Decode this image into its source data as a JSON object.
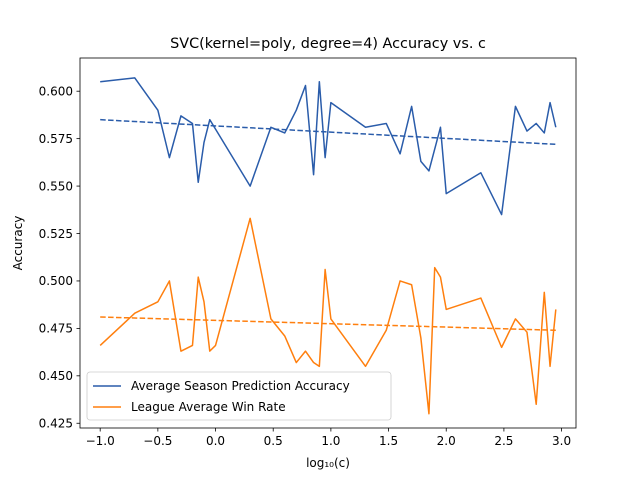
{
  "chart_data": {
    "type": "line",
    "title": "SVC(kernel=poly, degree=4) Accuracy vs. c",
    "xlabel": "log₁₀(c)",
    "ylabel": "Accuracy",
    "xlim": [
      -1.175,
      3.125
    ],
    "ylim": [
      0.4225,
      0.6175
    ],
    "xticks": [
      -1.0,
      -0.5,
      0.0,
      0.5,
      1.0,
      1.5,
      2.0,
      2.5,
      3.0
    ],
    "xtick_labels": [
      "−1.0",
      "−0.5",
      "0.0",
      "0.5",
      "1.0",
      "1.5",
      "2.0",
      "2.5",
      "3.0"
    ],
    "yticks": [
      0.425,
      0.45,
      0.475,
      0.5,
      0.525,
      0.55,
      0.575,
      0.6
    ],
    "ytick_labels": [
      "0.425",
      "0.450",
      "0.475",
      "0.500",
      "0.525",
      "0.550",
      "0.575",
      "0.600"
    ],
    "grid": false,
    "legend_position": "lower-left",
    "series": [
      {
        "name": "Average Season Prediction Accuracy",
        "color": "#2a5caa",
        "style": "solid",
        "x": [
          -1.0,
          -0.7,
          -0.5,
          -0.4,
          -0.3,
          -0.2,
          -0.15,
          -0.1,
          -0.05,
          0.0,
          0.3,
          0.48,
          0.6,
          0.7,
          0.78,
          0.85,
          0.9,
          0.95,
          1.0,
          1.3,
          1.48,
          1.6,
          1.7,
          1.78,
          1.85,
          1.95,
          2.0,
          2.3,
          2.48,
          2.6,
          2.7,
          2.78,
          2.85,
          2.9,
          2.95
        ],
        "y": [
          0.605,
          0.607,
          0.59,
          0.565,
          0.587,
          0.583,
          0.552,
          0.573,
          0.585,
          0.58,
          0.55,
          0.581,
          0.578,
          0.59,
          0.603,
          0.556,
          0.605,
          0.565,
          0.594,
          0.581,
          0.583,
          0.567,
          0.592,
          0.563,
          0.558,
          0.581,
          0.546,
          0.557,
          0.535,
          0.592,
          0.579,
          0.583,
          0.578,
          0.594,
          0.581
        ]
      },
      {
        "name": "Average Season Prediction Accuracy trend",
        "color": "#2a5caa",
        "style": "dashed",
        "x": [
          -1.0,
          2.95
        ],
        "y": [
          0.585,
          0.572
        ]
      },
      {
        "name": "League Average Win Rate",
        "color": "#ff7f0e",
        "style": "solid",
        "x": [
          -1.0,
          -0.7,
          -0.5,
          -0.4,
          -0.3,
          -0.2,
          -0.15,
          -0.1,
          -0.05,
          0.0,
          0.3,
          0.48,
          0.6,
          0.7,
          0.78,
          0.85,
          0.9,
          0.95,
          1.0,
          1.3,
          1.48,
          1.6,
          1.7,
          1.78,
          1.85,
          1.9,
          1.95,
          2.0,
          2.3,
          2.48,
          2.6,
          2.7,
          2.78,
          2.85,
          2.9,
          2.95
        ],
        "y": [
          0.466,
          0.483,
          0.489,
          0.5,
          0.463,
          0.466,
          0.502,
          0.489,
          0.463,
          0.466,
          0.533,
          0.48,
          0.471,
          0.457,
          0.463,
          0.457,
          0.455,
          0.506,
          0.48,
          0.455,
          0.474,
          0.5,
          0.498,
          0.47,
          0.43,
          0.507,
          0.502,
          0.485,
          0.491,
          0.465,
          0.48,
          0.473,
          0.435,
          0.494,
          0.455,
          0.485
        ]
      },
      {
        "name": "League Average Win Rate trend",
        "color": "#ff7f0e",
        "style": "dashed",
        "x": [
          -1.0,
          2.95
        ],
        "y": [
          0.481,
          0.474
        ]
      }
    ],
    "legend": [
      {
        "label": "Average Season Prediction Accuracy",
        "color": "#2a5caa"
      },
      {
        "label": "League Average Win Rate",
        "color": "#ff7f0e"
      }
    ]
  }
}
